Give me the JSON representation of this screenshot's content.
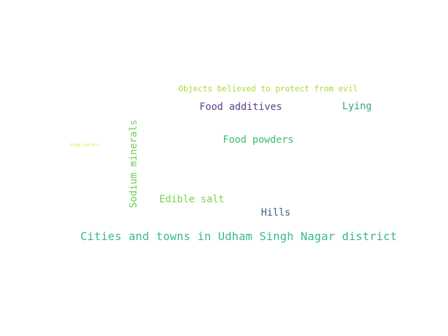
{
  "words": [
    {
      "text": "Cities and towns in Udham Singh Nagar district",
      "color": "#3bb88a"
    },
    {
      "text": "Objects believed to protect from evil",
      "color": "#a8db34"
    },
    {
      "text": "Food additives",
      "color": "#5c3c8c"
    },
    {
      "text": "Lying",
      "color": "#2ea08a"
    },
    {
      "text": "Food powders",
      "color": "#3cba74"
    },
    {
      "text": "Sodium minerals",
      "color": "#6ccd5a"
    },
    {
      "text": "Edible salt",
      "color": "#7ad151"
    },
    {
      "text": "Hills",
      "color": "#3b5e8c"
    },
    {
      "text": "Ginga Leaflets",
      "color": "#e2e418"
    }
  ]
}
